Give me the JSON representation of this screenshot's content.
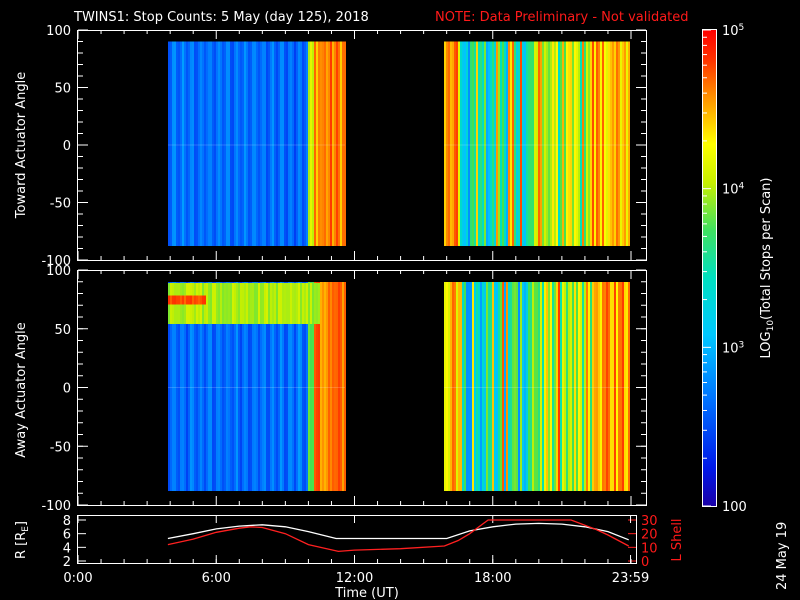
{
  "header": {
    "title": "TWINS1: Stop Counts:  5 May (day 125), 2018",
    "note": "NOTE: Data Preliminary - Not validated"
  },
  "footer": {
    "date_stamp": "24 May 19"
  },
  "colors": {
    "background": "#000000",
    "axes": "#ffffff",
    "note": "#ff1a1a",
    "r_line": "#ffffff",
    "lshell_line": "#ff2020"
  },
  "chart_data": [
    {
      "type": "heatmap",
      "name": "toward",
      "ylabel": "Toward Actuator Angle",
      "ylim": [
        -100,
        100
      ],
      "yticks": [
        "100",
        "50",
        "0",
        "-50",
        "-100"
      ],
      "xlim_hours": [
        0,
        24
      ],
      "data_segments_hours": [
        [
          3.9,
          11.6
        ],
        [
          15.9,
          23.9
        ]
      ],
      "angle_range": [
        -88,
        90
      ],
      "colorscale": "rainbow, log counts"
    },
    {
      "type": "heatmap",
      "name": "away",
      "ylabel": "Away Actuator Angle",
      "ylim": [
        -100,
        100
      ],
      "yticks": [
        "100",
        "50",
        "0",
        "-50",
        "-100"
      ],
      "xlim_hours": [
        0,
        24
      ],
      "data_segments_hours": [
        [
          3.9,
          11.6
        ],
        [
          15.9,
          23.9
        ]
      ],
      "angle_range": [
        -88,
        90
      ],
      "colorscale": "rainbow, log counts"
    },
    {
      "type": "line",
      "name": "orbit",
      "xlabel": "Time (UT)",
      "xticks": [
        "0:00",
        "6:00",
        "12:00",
        "18:00",
        "23:59"
      ],
      "ylabel_left": "R [R",
      "ylabel_left_sub": "E",
      "ylabel_left_end": "]",
      "ylim_left": [
        2,
        8
      ],
      "yticks_left": [
        "8",
        "6",
        "4",
        "2"
      ],
      "ylabel_right": "L Shell",
      "ylim_right": [
        0,
        30
      ],
      "yticks_right": [
        "30",
        "20",
        "10",
        "0"
      ],
      "series": [
        {
          "axis": "left",
          "x": [
            3.9,
            5,
            6,
            7,
            8,
            9,
            10,
            11.2,
            12,
            14,
            16,
            17,
            18,
            19,
            20,
            21,
            22,
            23,
            23.9
          ],
          "y": [
            5.3,
            6.0,
            6.7,
            7.1,
            7.3,
            7.0,
            6.3,
            5.3,
            5.3,
            5.3,
            5.3,
            6.4,
            7.0,
            7.4,
            7.5,
            7.4,
            7.0,
            6.3,
            5.1
          ]
        },
        {
          "axis": "right",
          "x": [
            3.9,
            5,
            6,
            7,
            7.5,
            8,
            9,
            10,
            11.3,
            12,
            14,
            15.9,
            16.5,
            17,
            17.8,
            21.4,
            22.5,
            23,
            23.9
          ],
          "y": [
            12,
            16,
            21,
            24,
            25,
            24.5,
            20,
            12,
            7,
            8,
            9,
            11,
            15,
            20,
            30,
            30,
            23,
            19,
            11
          ]
        }
      ]
    },
    {
      "type": "colorbar",
      "name": "colorbar",
      "label_main": "LOG",
      "label_sub": "10",
      "label_rest": "(Total Stops per Scan)",
      "range": [
        100,
        100000
      ],
      "ticks": [
        {
          "value": 100000,
          "base": "10",
          "exp": "5"
        },
        {
          "value": 10000,
          "base": "10",
          "exp": "4"
        },
        {
          "value": 1000,
          "base": "10",
          "exp": "3"
        },
        {
          "value": 100,
          "base": "100",
          "exp": ""
        }
      ]
    }
  ]
}
